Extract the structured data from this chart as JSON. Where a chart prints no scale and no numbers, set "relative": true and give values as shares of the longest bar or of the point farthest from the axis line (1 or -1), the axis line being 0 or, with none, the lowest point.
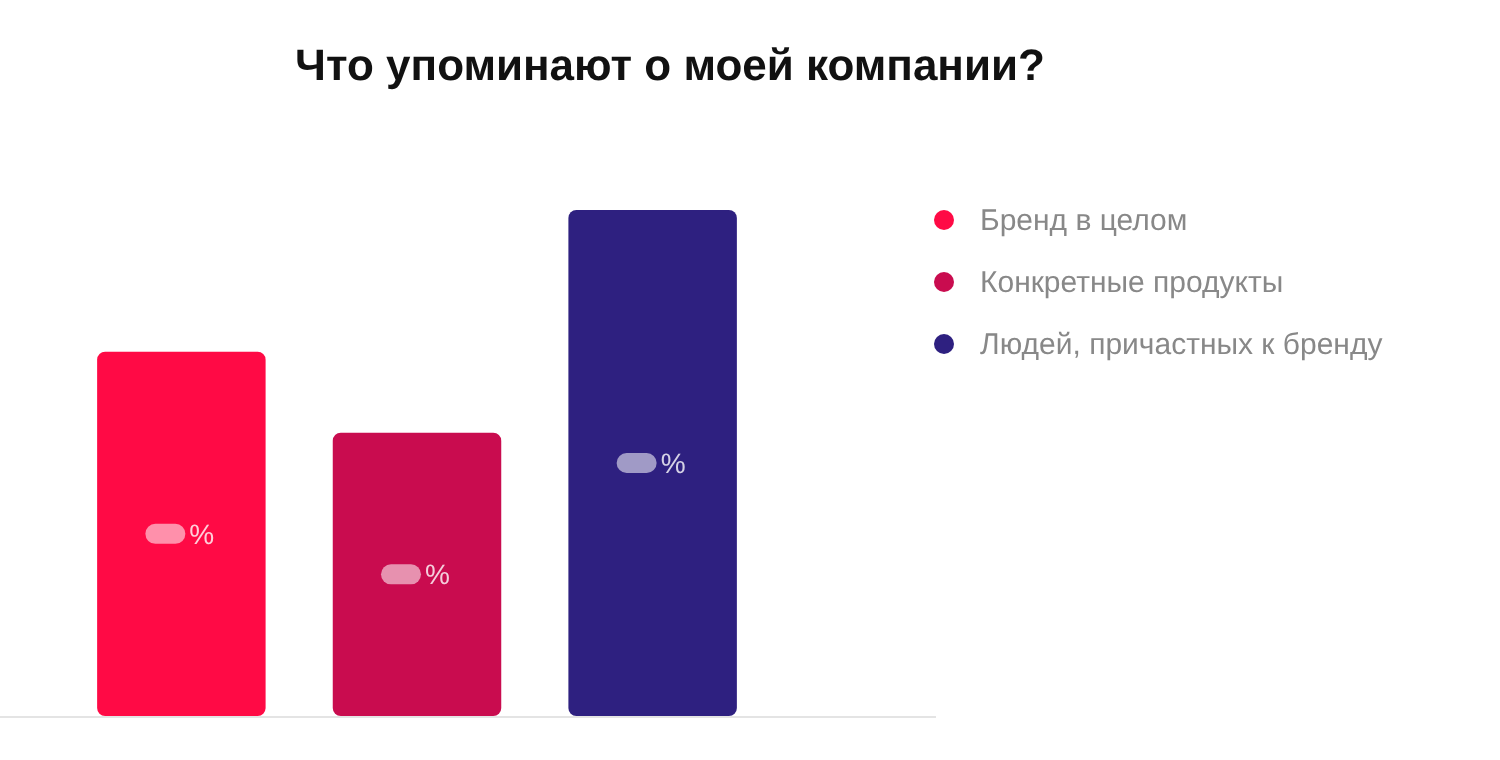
{
  "chart_data": {
    "type": "bar",
    "title": "Что упоминают о моей компании?",
    "relative": true,
    "categories": [
      null
    ],
    "series": [
      {
        "name": "Бренд в целом",
        "color": "#ff0a45",
        "values": [
          0.72
        ]
      },
      {
        "name": "Конкретные продукты",
        "color": "#c90c4f",
        "values": [
          0.56
        ]
      },
      {
        "name": "Людей, причастных к бренду",
        "color": "#2e2080",
        "values": [
          1
        ]
      }
    ],
    "annotations": [
      "%",
      "%",
      "%"
    ],
    "legend": "right",
    "grid": false
  }
}
